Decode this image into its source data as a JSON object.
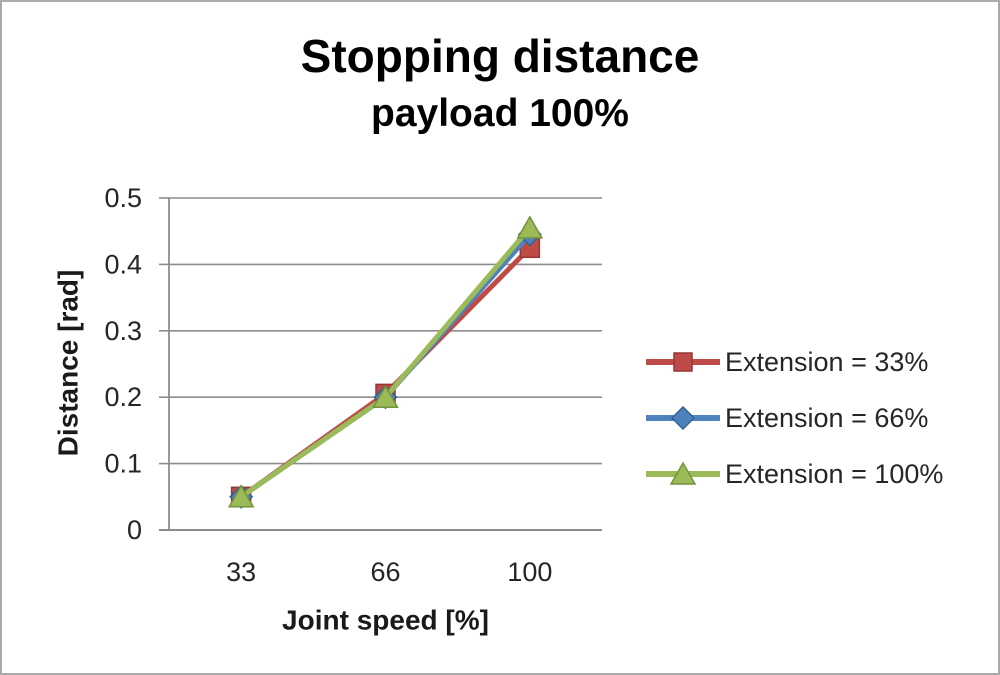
{
  "page": {
    "background_color": "#ffffff",
    "frame_border_color": "#ababab"
  },
  "chart_data": {
    "type": "line",
    "title": "Stopping distance",
    "subtitle": "payload 100%",
    "xlabel": "Joint speed [%]",
    "ylabel": "Distance [rad]",
    "categories": [
      "33",
      "66",
      "100"
    ],
    "series": [
      {
        "name": "Extension = 33%",
        "marker": "square",
        "color": "#be4b48",
        "marker_stroke": "#963634",
        "values": [
          0.05,
          0.205,
          0.425
        ]
      },
      {
        "name": "Extension = 66%",
        "marker": "diamond",
        "color": "#4f81bd",
        "marker_stroke": "#36618e",
        "values": [
          0.05,
          0.2,
          0.445
        ]
      },
      {
        "name": "Extension = 100%",
        "marker": "triangle",
        "color": "#9bbb59",
        "marker_stroke": "#76923c",
        "values": [
          0.05,
          0.2,
          0.455
        ]
      }
    ],
    "ylim": [
      0,
      0.5
    ],
    "yticks": [
      {
        "label": "0",
        "value": 0
      },
      {
        "label": "0.1",
        "value": 0.1
      },
      {
        "label": "0.2",
        "value": 0.2
      },
      {
        "label": "0.3",
        "value": 0.3
      },
      {
        "label": "0.4",
        "value": 0.4
      },
      {
        "label": "0.5",
        "value": 0.5
      }
    ],
    "grid": true,
    "legend_position": "right",
    "colors": {
      "grid": "#8c8c8c",
      "axis": "#8c8c8c",
      "tick_text": "#262626",
      "axis_title_text": "#1a1a1a",
      "legend_text": "#262626"
    }
  }
}
